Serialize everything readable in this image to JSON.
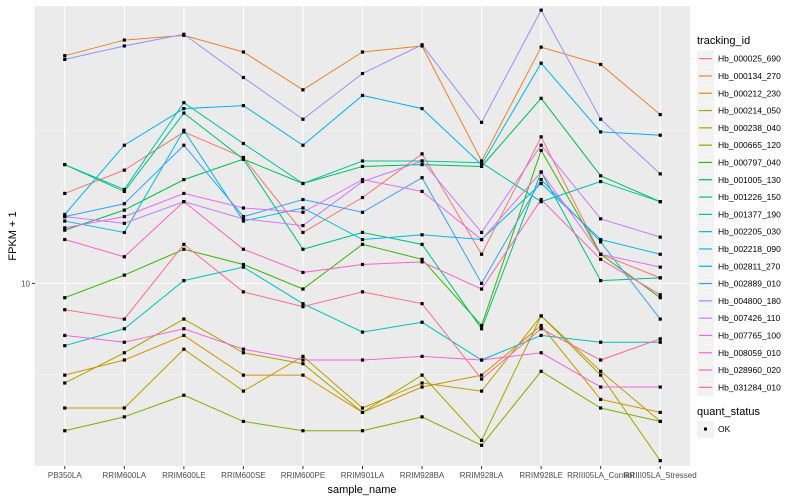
{
  "chart_data": {
    "type": "line",
    "xlabel": "sample_name",
    "ylabel": "FPKM + 1",
    "scale_y": "log10",
    "ylim": [
      5.2,
      27
    ],
    "y_ticks": [
      10
    ],
    "y_tick_labels": [
      "10"
    ],
    "grid": true,
    "background": "#ebebeb",
    "categories": [
      "PB350LA",
      "RRIM600LA",
      "RRIM600LE",
      "RRIM600SE",
      "RRIM600PE",
      "RRIM901LA",
      "RRIM928BA",
      "RRIM928LA",
      "RRIM928LE",
      "RRIII05LA_Control",
      "RRIII05LA_Stressed"
    ],
    "category_labels": [
      "PB350LA",
      "RRIM600LA",
      "RRIM600LE",
      "RRIM600SE",
      "RRIM600PE",
      "RRIM901LA",
      "RRIM928BA",
      "RRIM928LA",
      "RRIM928LE",
      "RRIII05LA_Control",
      "RRIII05LA_Stressed"
    ],
    "legend": {
      "title": "tracking_id",
      "position": "right"
    },
    "shape_legend": {
      "title": "quant_status",
      "entries": [
        "OK"
      ]
    },
    "series": [
      {
        "name": "Hb_000025_690",
        "color": "#F8766D",
        "values": [
          13.8,
          15.0,
          17.2,
          15.7,
          12.0,
          13.6,
          15.9,
          11.1,
          16.9,
          11.1,
          10.2
        ]
      },
      {
        "name": "Hb_000134_270",
        "color": "#EA8331",
        "values": [
          22.6,
          23.9,
          24.3,
          22.9,
          20.0,
          22.9,
          23.4,
          15.5,
          23.3,
          21.9,
          18.3
        ]
      },
      {
        "name": "Hb_000212_230",
        "color": "#D89000",
        "values": [
          7.2,
          7.6,
          8.3,
          7.2,
          7.2,
          6.3,
          6.9,
          7.2,
          8.6,
          6.6,
          6.3
        ]
      },
      {
        "name": "Hb_000214_050",
        "color": "#C09B00",
        "values": [
          6.4,
          6.4,
          7.9,
          6.8,
          7.7,
          6.4,
          7.0,
          6.8,
          8.9,
          7.3,
          6.1
        ]
      },
      {
        "name": "Hb_000238_040",
        "color": "#A3A500",
        "values": [
          7.0,
          7.8,
          8.8,
          7.8,
          7.5,
          6.3,
          7.2,
          5.7,
          8.9,
          7.2,
          5.3
        ]
      },
      {
        "name": "Hb_000665_120",
        "color": "#7CAE00",
        "values": [
          5.9,
          6.2,
          6.7,
          6.1,
          5.9,
          5.9,
          6.2,
          5.6,
          7.3,
          6.4,
          6.1
        ]
      },
      {
        "name": "Hb_000797_040",
        "color": "#39B600",
        "values": [
          9.5,
          10.3,
          11.3,
          10.7,
          9.8,
          11.5,
          10.9,
          8.6,
          16.1,
          11.1,
          9.5
        ]
      },
      {
        "name": "Hb_001005_130",
        "color": "#00BB4E",
        "values": [
          12.1,
          13.0,
          14.5,
          15.6,
          14.3,
          15.2,
          15.3,
          15.2,
          19.4,
          14.7,
          13.4
        ]
      },
      {
        "name": "Hb_001226_150",
        "color": "#00BF7D",
        "values": [
          15.3,
          13.9,
          18.4,
          15.6,
          11.3,
          12.0,
          11.5,
          8.5,
          14.9,
          10.1,
          10.2
        ]
      },
      {
        "name": "Hb_001377_190",
        "color": "#00C1A3",
        "values": [
          15.3,
          14.0,
          19.1,
          16.5,
          14.3,
          15.5,
          15.5,
          15.4,
          13.4,
          14.4,
          13.4
        ]
      },
      {
        "name": "Hb_002205_030",
        "color": "#00BFC4",
        "values": [
          8.0,
          8.5,
          10.1,
          10.6,
          9.3,
          8.4,
          8.7,
          7.6,
          8.3,
          8.1,
          8.1
        ]
      },
      {
        "name": "Hb_002218_090",
        "color": "#00BAE0",
        "values": [
          12.5,
          12.0,
          17.3,
          12.5,
          13.1,
          11.7,
          11.9,
          11.7,
          14.3,
          11.7,
          11.1
        ]
      },
      {
        "name": "Hb_002811_270",
        "color": "#00B0F6",
        "values": [
          12.8,
          16.4,
          18.7,
          18.9,
          16.4,
          19.6,
          18.7,
          15.3,
          22.0,
          17.2,
          17.0
        ]
      },
      {
        "name": "Hb_002889_010",
        "color": "#35A2FF",
        "values": [
          12.7,
          13.3,
          16.4,
          12.7,
          13.5,
          12.9,
          14.6,
          10.0,
          14.5,
          11.6,
          8.8
        ]
      },
      {
        "name": "Hb_004800_180",
        "color": "#9590FF",
        "values": [
          22.3,
          23.4,
          24.4,
          20.9,
          18.0,
          21.2,
          23.5,
          17.8,
          26.6,
          18.0,
          14.8
        ]
      },
      {
        "name": "Hb_007426_110",
        "color": "#C77CFF",
        "values": [
          12.7,
          12.4,
          13.4,
          12.6,
          12.3,
          14.4,
          15.5,
          12.0,
          16.4,
          12.6,
          11.8
        ]
      },
      {
        "name": "Hb_007765_100",
        "color": "#E76BF3",
        "values": [
          12.2,
          12.7,
          13.8,
          13.1,
          12.9,
          14.5,
          13.9,
          11.7,
          14.9,
          11.1,
          10.6
        ]
      },
      {
        "name": "Hb_008059_010",
        "color": "#FA62DB",
        "values": [
          8.3,
          8.1,
          8.5,
          7.9,
          7.6,
          7.6,
          7.7,
          7.6,
          7.8,
          6.9,
          6.9
        ]
      },
      {
        "name": "Hb_028960_020",
        "color": "#FF62BC",
        "values": [
          11.7,
          11.0,
          13.4,
          11.3,
          10.4,
          10.7,
          10.8,
          9.8,
          13.5,
          10.9,
          9.6
        ]
      },
      {
        "name": "Hb_031284_010",
        "color": "#FF6C91",
        "values": [
          9.1,
          8.8,
          11.5,
          9.7,
          9.2,
          9.7,
          9.3,
          7.1,
          8.5,
          7.6,
          8.2
        ]
      }
    ]
  }
}
